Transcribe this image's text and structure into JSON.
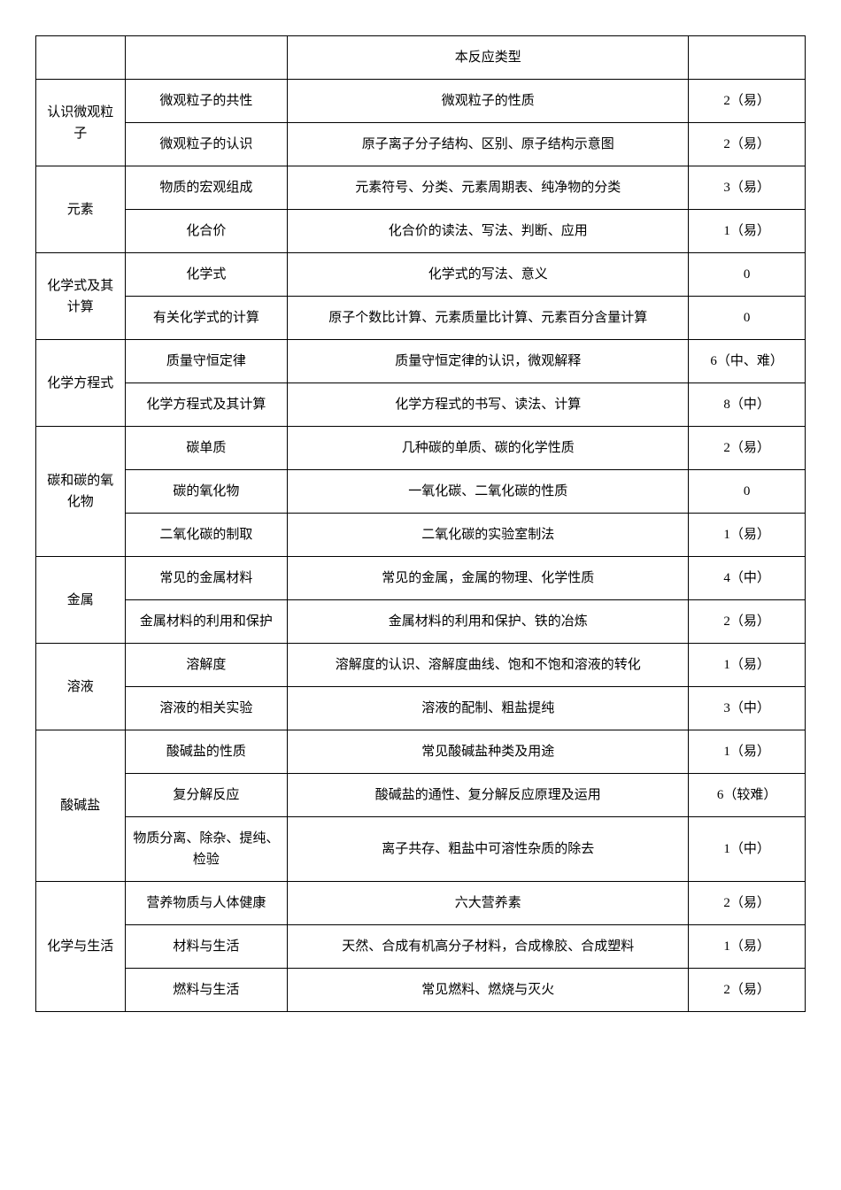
{
  "rows": [
    {
      "c1": "",
      "c2": "",
      "c3": "本反应类型",
      "c4": ""
    },
    {
      "c1": "认识微观粒子",
      "c1rowspan": 2,
      "c2": "微观粒子的共性",
      "c3": "微观粒子的性质",
      "c4": "2（易）"
    },
    {
      "c2": "微观粒子的认识",
      "c3": "原子离子分子结构、区别、原子结构示意图",
      "c4": "2（易）"
    },
    {
      "c1": "元素",
      "c1rowspan": 2,
      "c2": "物质的宏观组成",
      "c3": "元素符号、分类、元素周期表、纯净物的分类",
      "c4": "3（易）"
    },
    {
      "c2": "化合价",
      "c3": "化合价的读法、写法、判断、应用",
      "c4": "1（易）"
    },
    {
      "c1": "化学式及其计算",
      "c1rowspan": 2,
      "c2": "化学式",
      "c3": "化学式的写法、意义",
      "c4": "0"
    },
    {
      "c2": "有关化学式的计算",
      "c3": "原子个数比计算、元素质量比计算、元素百分含量计算",
      "c4": "0"
    },
    {
      "c1": "化学方程式",
      "c1rowspan": 2,
      "c2": "质量守恒定律",
      "c3": "质量守恒定律的认识，微观解释",
      "c4": "6（中、难）"
    },
    {
      "c2": "化学方程式及其计算",
      "c3": "化学方程式的书写、读法、计算",
      "c4": "8（中）"
    },
    {
      "c1": "碳和碳的氧化物",
      "c1rowspan": 3,
      "c2": "碳单质",
      "c3": "几种碳的单质、碳的化学性质",
      "c4": "2（易）"
    },
    {
      "c2": "碳的氧化物",
      "c3": "一氧化碳、二氧化碳的性质",
      "c4": "0"
    },
    {
      "c2": "二氧化碳的制取",
      "c3": "二氧化碳的实验室制法",
      "c4": "1（易）"
    },
    {
      "c1": "金属",
      "c1rowspan": 2,
      "c2": "常见的金属材料",
      "c3": "常见的金属，金属的物理、化学性质",
      "c4": "4（中）"
    },
    {
      "c2": "金属材料的利用和保护",
      "c3": "金属材料的利用和保护、铁的冶炼",
      "c4": "2（易）"
    },
    {
      "c1": "溶液",
      "c1rowspan": 2,
      "c2": "溶解度",
      "c3": "溶解度的认识、溶解度曲线、饱和不饱和溶液的转化",
      "c4": "1（易）"
    },
    {
      "c2": "溶液的相关实验",
      "c3": "溶液的配制、粗盐提纯",
      "c4": "3（中）"
    },
    {
      "c1": "酸碱盐",
      "c1rowspan": 3,
      "c2": "酸碱盐的性质",
      "c3": "常见酸碱盐种类及用途",
      "c4": "1（易）"
    },
    {
      "c2": "复分解反应",
      "c3": "酸碱盐的通性、复分解反应原理及运用",
      "c4": "6（较难）"
    },
    {
      "c2": "物质分离、除杂、提纯、检验",
      "c3": "离子共存、粗盐中可溶性杂质的除去",
      "c4": "1（中）"
    },
    {
      "c1": "化学与生活",
      "c1rowspan": 3,
      "c2": "营养物质与人体健康",
      "c3": "六大营养素",
      "c4": "2（易）"
    },
    {
      "c2": "材料与生活",
      "c3": "天然、合成有机高分子材料，合成橡胶、合成塑料",
      "c4": "1（易）"
    },
    {
      "c2": "燃料与生活",
      "c3": "常见燃料、燃烧与灭火",
      "c4": "2（易）"
    }
  ]
}
